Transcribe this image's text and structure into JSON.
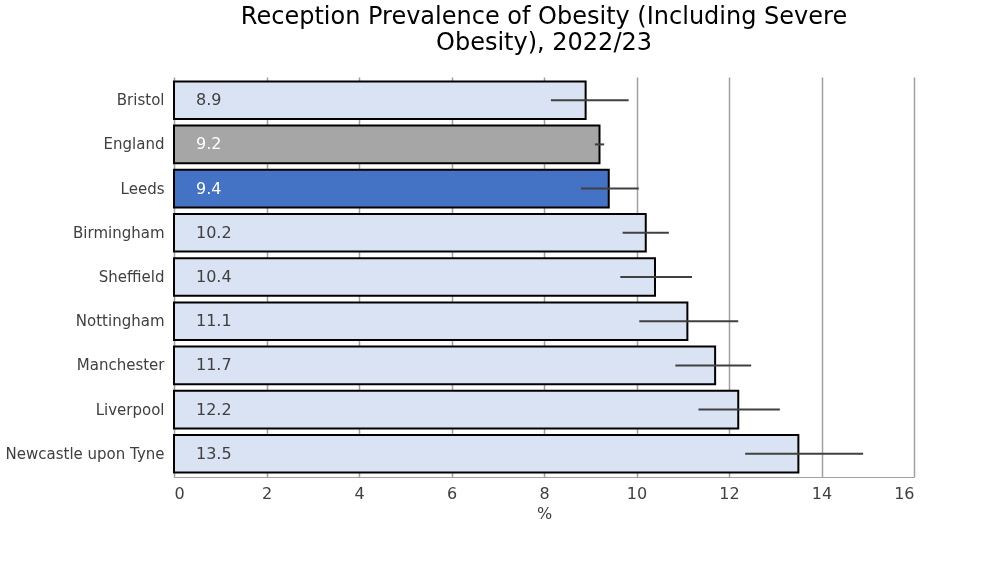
{
  "chart_data": {
    "type": "bar",
    "orientation": "horizontal",
    "title": "Reception Prevalence of Obesity (Including Severe Obesity), 2022/23",
    "xlabel": "%",
    "categories": [
      "Bristol",
      "England",
      "Leeds",
      "Birmingham",
      "Sheffield",
      "Nottingham",
      "Manchester",
      "Liverpool",
      "Newcastle upon Tyne"
    ],
    "values": [
      8.9,
      9.2,
      9.4,
      10.2,
      10.4,
      11.1,
      11.7,
      12.2,
      13.5
    ],
    "colors": [
      "#dae3f3",
      "#a6a6a6",
      "#4472c4",
      "#dae3f3",
      "#dae3f3",
      "#dae3f3",
      "#dae3f3",
      "#dae3f3",
      "#dae3f3"
    ],
    "errors": [
      [
        8.15,
        9.83
      ],
      [
        9.1,
        9.3
      ],
      [
        8.8,
        10.05
      ],
      [
        9.7,
        10.7
      ],
      [
        9.65,
        11.2
      ],
      [
        10.06,
        12.2
      ],
      [
        10.84,
        12.48
      ],
      [
        11.34,
        13.1
      ],
      [
        12.35,
        14.9
      ]
    ],
    "xlim": [
      0,
      16
    ],
    "xticks": [
      0,
      2,
      4,
      6,
      8,
      10,
      12,
      14,
      16
    ],
    "grid": "x",
    "data_labels": true
  }
}
